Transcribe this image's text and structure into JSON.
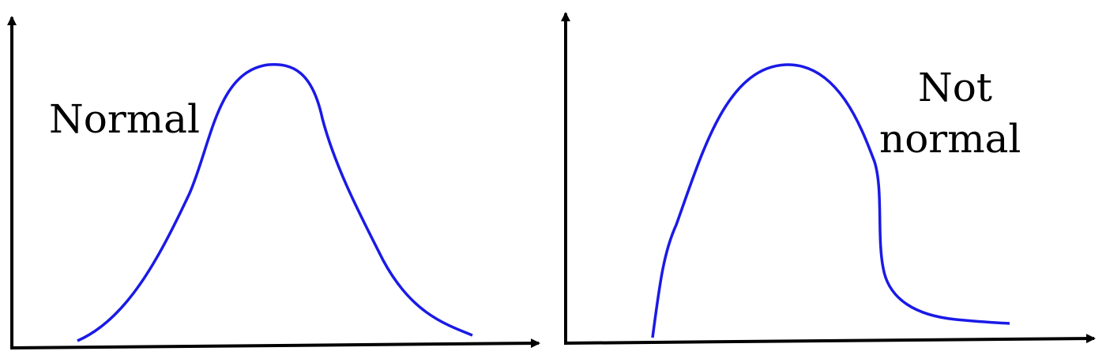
{
  "panels": [
    {
      "label_lines": [
        "Normal"
      ]
    },
    {
      "label_lines": [
        "Not",
        "normal"
      ]
    }
  ],
  "colors": {
    "curve": "#1a1ae6",
    "axis": "#000000",
    "background": "#ffffff"
  }
}
